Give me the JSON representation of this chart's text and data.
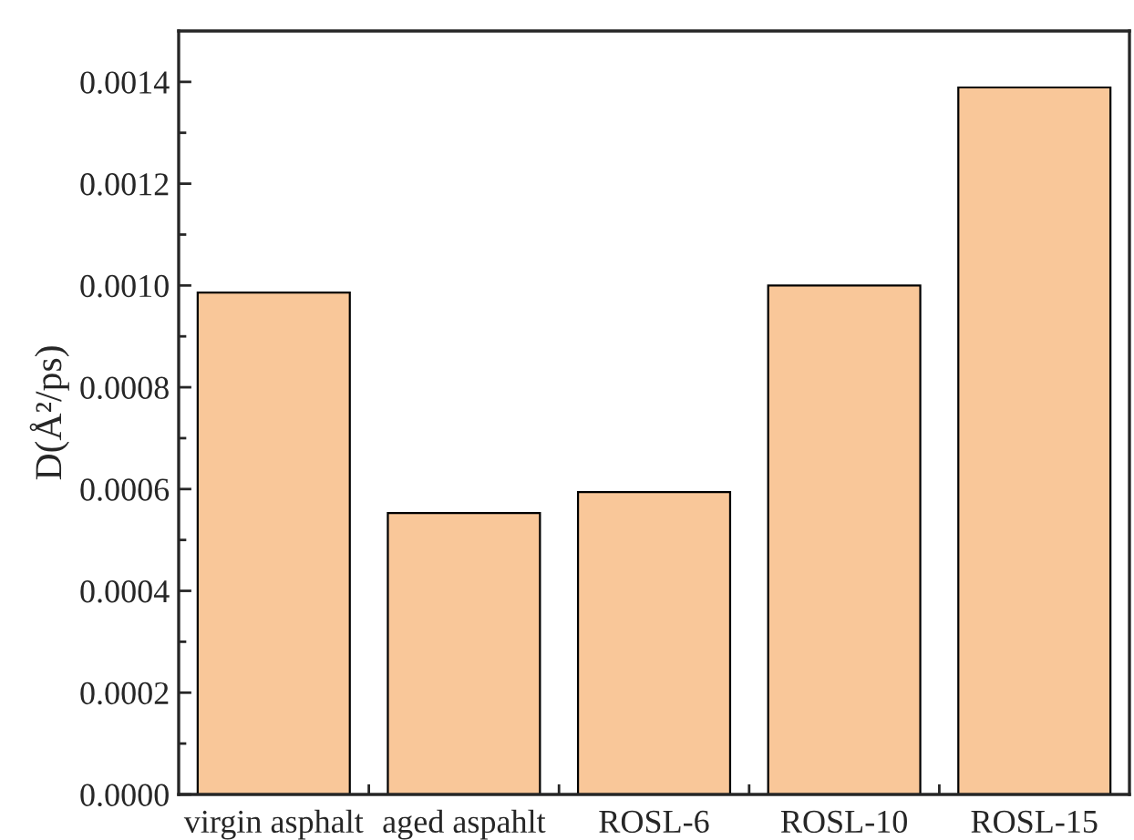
{
  "chart_data": {
    "type": "bar",
    "ylabel": "D(Å²/ps)",
    "categories": [
      "virgin asphalt",
      "aged aspahlt",
      "ROSL-6",
      "ROSL-10",
      "ROSL-15"
    ],
    "values": [
      0.000986,
      0.000553,
      0.000594,
      0.001,
      0.001389
    ],
    "color": "#f9c799",
    "ylim": [
      0,
      0.0015
    ],
    "yticks": [
      {
        "value": 0,
        "label": "0.0000"
      },
      {
        "value": 0.0002,
        "label": "0.0002"
      },
      {
        "value": 0.0004,
        "label": "0.0004"
      },
      {
        "value": 0.0006,
        "label": "0.0006"
      },
      {
        "value": 0.0008,
        "label": "0.0008"
      },
      {
        "value": 0.001,
        "label": "0.0010"
      },
      {
        "value": 0.0012,
        "label": "0.0012"
      },
      {
        "value": 0.0014,
        "label": "0.0014"
      }
    ],
    "grid": false,
    "legend": false
  }
}
